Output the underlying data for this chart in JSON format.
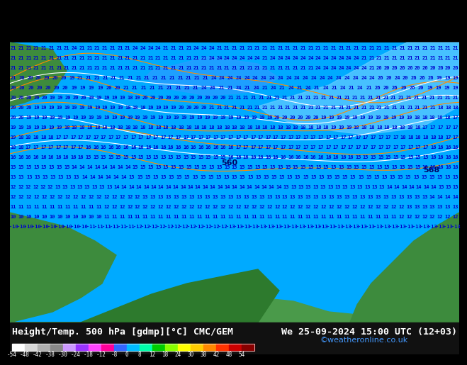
{
  "title_left": "Height/Temp. 500 hPa [gdmp][°C] CMC/GEM",
  "title_right": "We 25-09-2024 15:00 UTC (12+03)",
  "credit": "©weatheronline.co.uk",
  "colorbar_values": [
    -54,
    -48,
    -42,
    -38,
    -30,
    -24,
    -18,
    -12,
    -8,
    0,
    8,
    12,
    18,
    24,
    30,
    38,
    42,
    48,
    54
  ],
  "colorbar_colors": [
    "#ffffff",
    "#d0d0d0",
    "#a0a0a0",
    "#808080",
    "#c0a0ff",
    "#a040ff",
    "#ff40ff",
    "#ff0080",
    "#4040ff",
    "#00c0ff",
    "#00ffb0",
    "#00e000",
    "#80ff00",
    "#ffff00",
    "#ffc000",
    "#ff8000",
    "#ff4000",
    "#cc0000",
    "#800000"
  ],
  "bg_color": "#00aaff",
  "map_colors": {
    "ocean": "#00aaff",
    "land_green": "#44aa44",
    "land_dark": "#2d6e2d",
    "contour_orange": "#ff8c00",
    "contour_white": "#ffffff",
    "text_contour": "#0000aa"
  },
  "label_color": "#0000cc",
  "credit_color": "#0066cc",
  "bottom_bar_color": "#000000",
  "title_fontsize": 10,
  "credit_fontsize": 9
}
